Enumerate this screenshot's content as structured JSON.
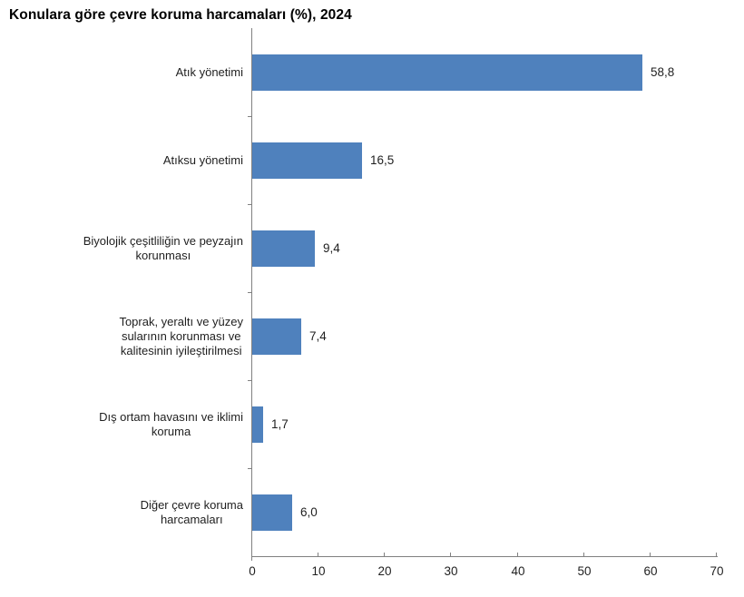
{
  "chart_data": {
    "type": "bar",
    "orientation": "horizontal",
    "title": "Konulara göre çevre koruma harcamaları (%), 2024",
    "categories": [
      "Atık yönetimi",
      "Atıksu yönetimi",
      "Biyolojik çeşitliliğin ve peyzajın\nkorunması",
      "Toprak, yeraltı ve yüzey\nsularının korunması ve\nkalitesinin iyileştirilmesi",
      "Dış ortam havasını ve iklimi\nkoruma",
      "Diğer çevre koruma\nharcamaları"
    ],
    "values": [
      58.8,
      16.5,
      9.4,
      7.4,
      1.7,
      6.0
    ],
    "value_labels": [
      "58,8",
      "16,5",
      "9,4",
      "7,4",
      "1,7",
      "6,0"
    ],
    "xlabel": "",
    "ylabel": "",
    "xlim": [
      0,
      70
    ],
    "x_ticks": [
      0,
      10,
      20,
      30,
      40,
      50,
      60,
      70
    ],
    "x_tick_labels": [
      "0",
      "10",
      "20",
      "30",
      "40",
      "50",
      "60",
      "70"
    ],
    "grid": false,
    "legend": false,
    "bar_color": "#4f81bd",
    "axis_color": "#808080",
    "text_color": "#1f1f1f",
    "title_color": "#000000"
  }
}
